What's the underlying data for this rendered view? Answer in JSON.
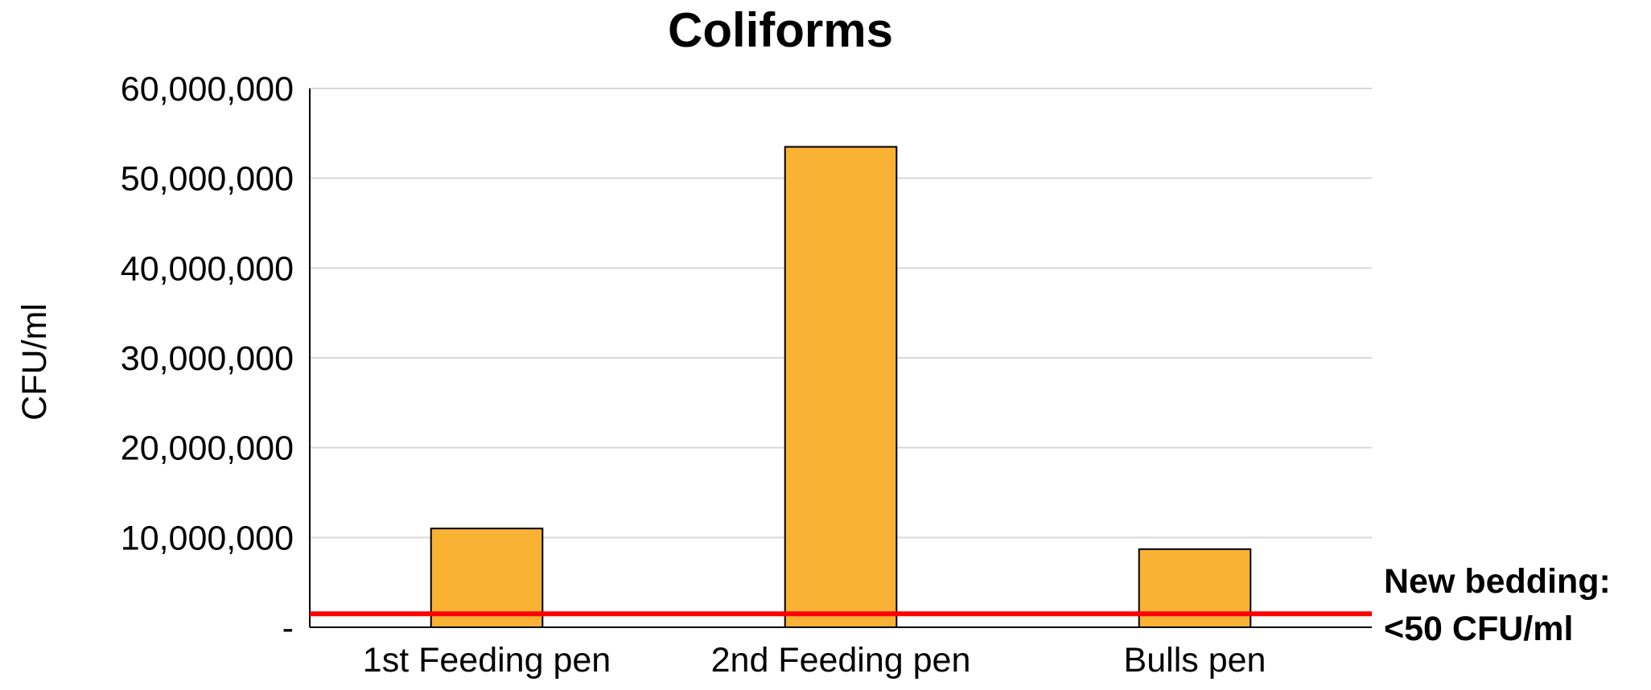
{
  "chart_data": {
    "type": "bar",
    "title": "Coliforms",
    "xlabel": "",
    "ylabel": "CFU/ml",
    "categories": [
      "1st Feeding pen",
      "2nd Feeding pen",
      "Bulls pen"
    ],
    "values": [
      11000000,
      53500000,
      8700000
    ],
    "ylim": [
      0,
      60000000
    ],
    "yticks": [
      0,
      10000000,
      20000000,
      30000000,
      40000000,
      50000000,
      60000000
    ],
    "ytick_labels": [
      "-",
      "10,000,000",
      "20,000,000",
      "30,000,000",
      "40,000,000",
      "50,000,000",
      "60,000,000"
    ],
    "grid": true,
    "legend": "none",
    "bar_color": "#F9B233",
    "reference_line": {
      "value": 1500000,
      "color": "#FF0000",
      "label_line1": "New bedding:",
      "label_line2": "<50 CFU/ml"
    }
  }
}
